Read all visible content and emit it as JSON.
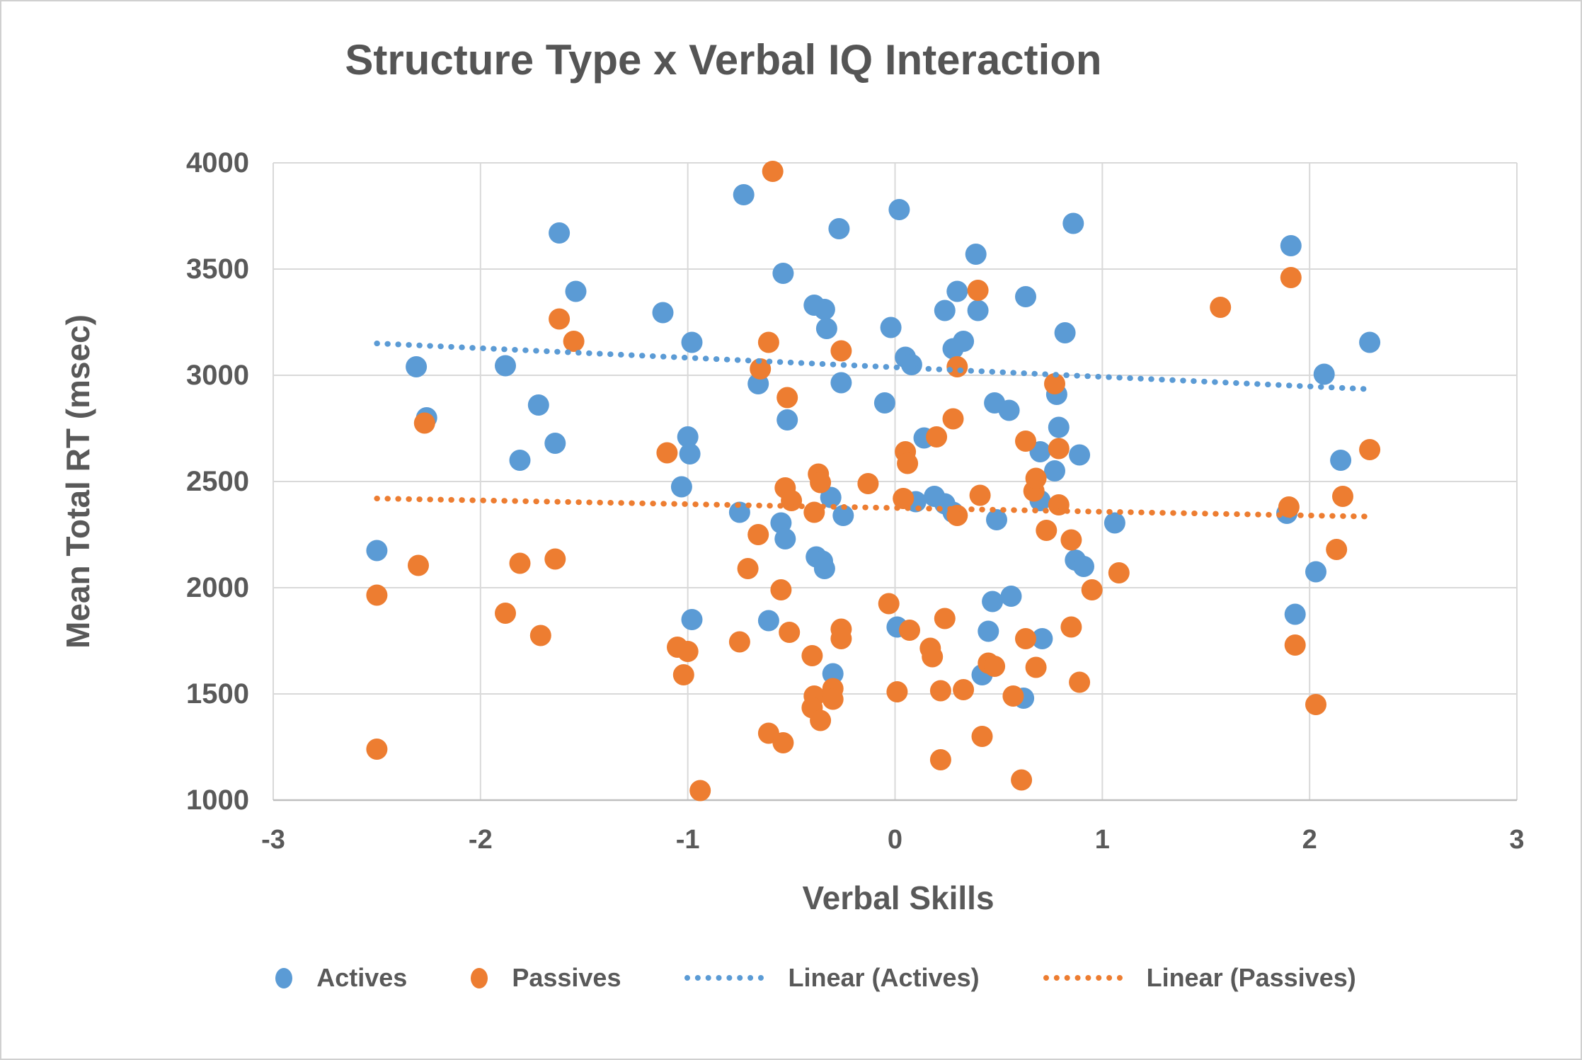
{
  "chart_data": {
    "type": "scatter",
    "title": "Structure Type x Verbal IQ Interaction",
    "xlabel": "Verbal Skills",
    "ylabel": "Mean Total RT (msec)",
    "xlim": [
      -3,
      3
    ],
    "ylim": [
      1000,
      4000
    ],
    "x_ticks": [
      "-3",
      "-2",
      "-1",
      "0",
      "1",
      "2",
      "3"
    ],
    "y_ticks": [
      "1000",
      "1500",
      "2000",
      "2500",
      "3000",
      "3500",
      "4000"
    ],
    "grid": true,
    "colors": {
      "actives": "#5B9BD5",
      "passives": "#ED7D31",
      "gridline": "#D9D9D9",
      "axis_line": "#BFBFBF",
      "text": "#595959"
    },
    "series": [
      {
        "name": "Actives",
        "color": "#5B9BD5",
        "points": [
          [
            -2.5,
            2175
          ],
          [
            -2.31,
            3040
          ],
          [
            -2.26,
            2800
          ],
          [
            -1.88,
            3045
          ],
          [
            -1.81,
            2600
          ],
          [
            -1.72,
            2860
          ],
          [
            -1.64,
            2680
          ],
          [
            -1.62,
            3670
          ],
          [
            -1.54,
            3395
          ],
          [
            -1.12,
            3295
          ],
          [
            -1.03,
            2475
          ],
          [
            -1.0,
            2710
          ],
          [
            -0.99,
            2630
          ],
          [
            -0.98,
            3155
          ],
          [
            -0.98,
            1850
          ],
          [
            -0.75,
            2355
          ],
          [
            -0.73,
            3850
          ],
          [
            -0.66,
            2960
          ],
          [
            -0.61,
            1845
          ],
          [
            -0.55,
            2305
          ],
          [
            -0.54,
            3480
          ],
          [
            -0.53,
            2230
          ],
          [
            -0.52,
            2790
          ],
          [
            -0.39,
            3330
          ],
          [
            -0.38,
            2145
          ],
          [
            -0.35,
            2125
          ],
          [
            -0.34,
            3310
          ],
          [
            -0.34,
            2090
          ],
          [
            -0.33,
            3220
          ],
          [
            -0.31,
            2425
          ],
          [
            -0.3,
            1595
          ],
          [
            -0.27,
            3690
          ],
          [
            -0.26,
            2965
          ],
          [
            -0.25,
            2340
          ],
          [
            -0.05,
            2870
          ],
          [
            -0.02,
            3225
          ],
          [
            0.01,
            1815
          ],
          [
            0.02,
            3780
          ],
          [
            0.05,
            3085
          ],
          [
            0.08,
            3050
          ],
          [
            0.1,
            2405
          ],
          [
            0.14,
            2705
          ],
          [
            0.19,
            2430
          ],
          [
            0.24,
            2395
          ],
          [
            0.28,
            2355
          ],
          [
            0.24,
            3305
          ],
          [
            0.3,
            3395
          ],
          [
            0.28,
            3125
          ],
          [
            0.33,
            3160
          ],
          [
            0.4,
            3305
          ],
          [
            0.39,
            3570
          ],
          [
            0.42,
            1590
          ],
          [
            0.45,
            1795
          ],
          [
            0.47,
            1935
          ],
          [
            0.49,
            2320
          ],
          [
            0.48,
            2870
          ],
          [
            0.56,
            1960
          ],
          [
            0.55,
            2835
          ],
          [
            0.62,
            1480
          ],
          [
            0.63,
            3370
          ],
          [
            0.7,
            2640
          ],
          [
            0.7,
            2410
          ],
          [
            0.71,
            1760
          ],
          [
            0.77,
            2550
          ],
          [
            0.78,
            2910
          ],
          [
            0.79,
            2755
          ],
          [
            0.82,
            3200
          ],
          [
            0.86,
            3715
          ],
          [
            0.87,
            2130
          ],
          [
            0.91,
            2100
          ],
          [
            0.89,
            2625
          ],
          [
            1.06,
            2305
          ],
          [
            1.89,
            2350
          ],
          [
            1.91,
            3610
          ],
          [
            1.93,
            1875
          ],
          [
            2.03,
            2075
          ],
          [
            2.07,
            3005
          ],
          [
            2.15,
            2600
          ],
          [
            2.29,
            3155
          ]
        ]
      },
      {
        "name": "Passives",
        "color": "#ED7D31",
        "points": [
          [
            -2.5,
            1965
          ],
          [
            -2.5,
            1240
          ],
          [
            -2.3,
            2105
          ],
          [
            -2.27,
            2775
          ],
          [
            -1.88,
            1880
          ],
          [
            -1.81,
            2115
          ],
          [
            -1.71,
            1775
          ],
          [
            -1.64,
            2135
          ],
          [
            -1.62,
            3265
          ],
          [
            -1.55,
            3160
          ],
          [
            -1.1,
            2635
          ],
          [
            -1.05,
            1720
          ],
          [
            -1.0,
            1700
          ],
          [
            -1.02,
            1590
          ],
          [
            -0.94,
            1045
          ],
          [
            -0.75,
            1745
          ],
          [
            -0.71,
            2090
          ],
          [
            -0.66,
            2250
          ],
          [
            -0.65,
            3030
          ],
          [
            -0.61,
            3155
          ],
          [
            -0.61,
            1315
          ],
          [
            -0.59,
            3960
          ],
          [
            -0.55,
            1990
          ],
          [
            -0.54,
            1270
          ],
          [
            -0.52,
            2895
          ],
          [
            -0.53,
            2470
          ],
          [
            -0.5,
            2410
          ],
          [
            -0.51,
            1790
          ],
          [
            -0.4,
            1680
          ],
          [
            -0.39,
            2355
          ],
          [
            -0.39,
            1490
          ],
          [
            -0.4,
            1435
          ],
          [
            -0.37,
            2535
          ],
          [
            -0.36,
            2495
          ],
          [
            -0.36,
            1375
          ],
          [
            -0.3,
            1525
          ],
          [
            -0.3,
            1475
          ],
          [
            -0.26,
            3115
          ],
          [
            -0.26,
            1805
          ],
          [
            -0.26,
            1760
          ],
          [
            -0.13,
            2490
          ],
          [
            -0.03,
            1925
          ],
          [
            0.01,
            1510
          ],
          [
            0.04,
            2420
          ],
          [
            0.05,
            2640
          ],
          [
            0.06,
            2585
          ],
          [
            0.07,
            1800
          ],
          [
            0.17,
            1715
          ],
          [
            0.18,
            1675
          ],
          [
            0.2,
            2710
          ],
          [
            0.22,
            1515
          ],
          [
            0.22,
            1190
          ],
          [
            0.24,
            1855
          ],
          [
            0.28,
            2795
          ],
          [
            0.3,
            2340
          ],
          [
            0.3,
            3040
          ],
          [
            0.33,
            1520
          ],
          [
            0.4,
            3400
          ],
          [
            0.41,
            2435
          ],
          [
            0.42,
            1300
          ],
          [
            0.45,
            1645
          ],
          [
            0.48,
            1630
          ],
          [
            0.57,
            1490
          ],
          [
            0.61,
            1095
          ],
          [
            0.63,
            2690
          ],
          [
            0.63,
            1760
          ],
          [
            0.67,
            2455
          ],
          [
            0.68,
            2515
          ],
          [
            0.68,
            1625
          ],
          [
            0.73,
            2270
          ],
          [
            0.77,
            2960
          ],
          [
            0.79,
            2655
          ],
          [
            0.79,
            2390
          ],
          [
            0.85,
            2225
          ],
          [
            0.85,
            1815
          ],
          [
            0.89,
            1555
          ],
          [
            0.95,
            1990
          ],
          [
            1.08,
            2070
          ],
          [
            1.57,
            3320
          ],
          [
            1.9,
            2380
          ],
          [
            1.91,
            3460
          ],
          [
            1.93,
            1730
          ],
          [
            2.03,
            1450
          ],
          [
            2.13,
            2180
          ],
          [
            2.16,
            2430
          ],
          [
            2.29,
            2650
          ]
        ]
      }
    ],
    "trendlines": [
      {
        "name": "Linear (Actives)",
        "color": "#5B9BD5",
        "x1": -2.5,
        "y1": 3150,
        "x2": 2.28,
        "y2": 2935
      },
      {
        "name": "Linear (Passives)",
        "color": "#ED7D31",
        "x1": -2.5,
        "y1": 2420,
        "x2": 2.28,
        "y2": 2335
      }
    ],
    "legend": [
      {
        "marker": "dot",
        "color": "#5B9BD5",
        "label": "Actives"
      },
      {
        "marker": "dot",
        "color": "#ED7D31",
        "label": "Passives"
      },
      {
        "marker": "dotted-line",
        "color": "#5B9BD5",
        "label": "Linear (Actives)"
      },
      {
        "marker": "dotted-line",
        "color": "#ED7D31",
        "label": "Linear (Passives)"
      }
    ],
    "legend_position": "bottom"
  }
}
